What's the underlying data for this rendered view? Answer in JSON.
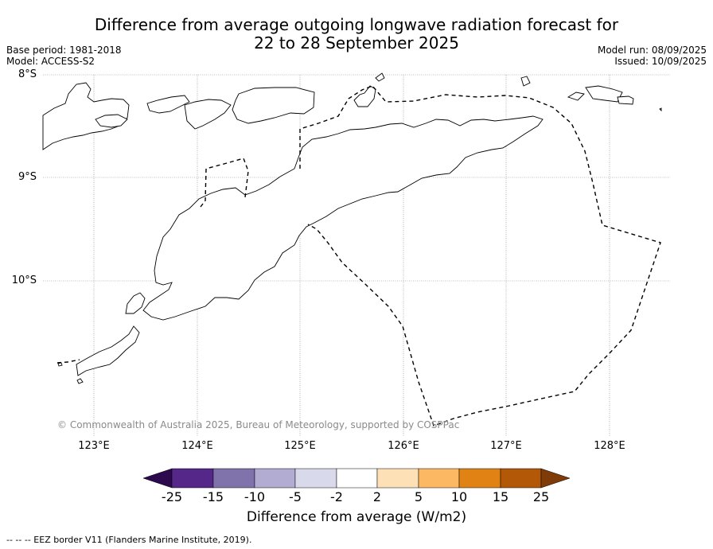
{
  "title": {
    "line1": "Difference from average outgoing longwave radiation forecast for",
    "line2": "22 to 28 September 2025"
  },
  "meta_left": {
    "base_period": "Base period: 1981-2018",
    "model": "Model: ACCESS-S2"
  },
  "meta_right": {
    "model_run": "Model run: 08/09/2025",
    "issued": "Issued: 10/09/2025"
  },
  "map": {
    "lat_labels": [
      "8°S",
      "9°S",
      "10°S"
    ],
    "lon_labels": [
      "123°E",
      "124°E",
      "125°E",
      "126°E",
      "127°E",
      "128°E"
    ],
    "copyright": "© Commonwealth of Australia 2025, Bureau of Meteorology, supported by COSPPac",
    "land_color": "#ffffff",
    "coastline_color": "#000000",
    "gridline_color": "#808080"
  },
  "colorbar": {
    "label": "Difference from average (W/m2)",
    "ticks": [
      "-25",
      "-15",
      "-10",
      "-5",
      "-2",
      "2",
      "5",
      "10",
      "15",
      "25"
    ],
    "colors": [
      "#2d0a4e",
      "#542788",
      "#8073ac",
      "#b2abd2",
      "#d8daeb",
      "#ffffff",
      "#fee0b6",
      "#fdb863",
      "#e08214",
      "#b35806",
      "#7f3b08"
    ]
  },
  "footer": {
    "legend": "--  --  -- EEZ border V11 (Flanders Marine Institute, 2019)."
  }
}
